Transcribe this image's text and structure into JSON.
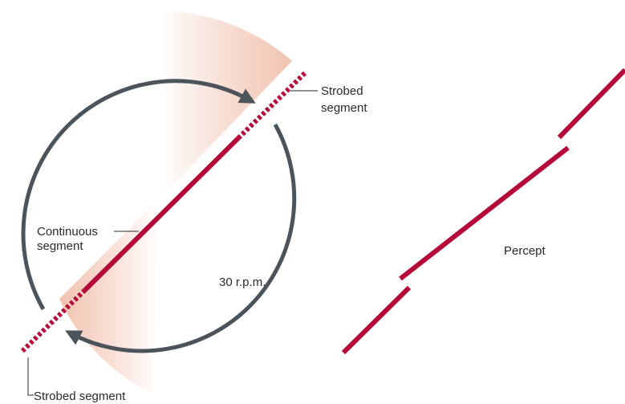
{
  "labels": {
    "strobed_top_line1": "Strobed",
    "strobed_top_line2": "segment",
    "strobed_bottom": "Strobed segment",
    "continuous_line1": "Continuous",
    "continuous_line2": "segment",
    "speed": "30 r.p.m.",
    "percept": "Percept"
  },
  "colors": {
    "segment": "#b5093a",
    "arrow": "#4b535b",
    "wedge": "#f3c8b6",
    "leader": "#2a2a2a",
    "text": "#2a2a2a"
  },
  "icons": {
    "arrow_top": "clockwise-arrow-icon",
    "arrow_bottom": "clockwise-arrow-icon"
  }
}
